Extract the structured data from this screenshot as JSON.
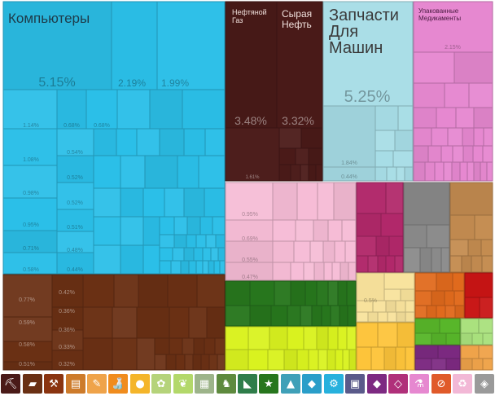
{
  "chart_data": {
    "type": "treemap",
    "leaves": [
      {
        "group": "machines",
        "label": "Компьютеры",
        "value": 5.15,
        "share": "5.15%",
        "title_size": "xl"
      },
      {
        "group": "machines",
        "label": "",
        "value": 2.19,
        "share": "2.19%"
      },
      {
        "group": "machines",
        "label": "",
        "value": 1.99,
        "share": "1.99%"
      },
      {
        "group": "machines",
        "label": "",
        "value": 1.14,
        "share": "1.14%"
      },
      {
        "group": "machines",
        "label": "",
        "value": 0.68,
        "share": "0.68%"
      },
      {
        "group": "machines",
        "label": "",
        "value": 0.68,
        "share": "0.68%"
      },
      {
        "group": "machines",
        "label": "",
        "value": 1.08,
        "share": "1.08%"
      },
      {
        "group": "machines",
        "label": "",
        "value": 0.54,
        "share": "0.54%"
      },
      {
        "group": "machines",
        "label": "",
        "value": 0.98,
        "share": "0.98%"
      },
      {
        "group": "machines",
        "label": "",
        "value": 0.52,
        "share": "0.52%"
      },
      {
        "group": "machines",
        "label": "",
        "value": 0.95,
        "share": "0.95%"
      },
      {
        "group": "machines",
        "label": "",
        "value": 0.52,
        "share": "0.52%"
      },
      {
        "group": "machines",
        "label": "",
        "value": 0.71,
        "share": "0.71%"
      },
      {
        "group": "machines",
        "label": "",
        "value": 0.51,
        "share": "0.51%"
      },
      {
        "group": "machines",
        "label": "",
        "value": 0.58,
        "share": "0.58%"
      },
      {
        "group": "machines",
        "label": "",
        "value": 0.48,
        "share": "0.48%"
      },
      {
        "group": "machines",
        "label": "",
        "value": 0.44,
        "share": "0.44%"
      },
      {
        "group": "minerals",
        "label": "Нефтяной Газ",
        "value": 3.48,
        "share": "3.48%",
        "title_size": "s"
      },
      {
        "group": "minerals",
        "label": "Сырая Нефть",
        "value": 3.32,
        "share": "3.32%",
        "title_size": "m"
      },
      {
        "group": "minerals",
        "label": "",
        "value": 1.61,
        "share": "1.61%"
      },
      {
        "group": "transport",
        "label": "Запчасти Для Машин",
        "value": 5.25,
        "share": "5.25%",
        "title_size": "l"
      },
      {
        "group": "transport",
        "label": "",
        "value": 1.84,
        "share": "1.84%"
      },
      {
        "group": "transport",
        "label": "",
        "value": 0.44,
        "share": "0.44%"
      },
      {
        "group": "chemicals",
        "label": "Упакованные Медикаменты",
        "value": 2.15,
        "share": "2.15%",
        "title_size": "xs"
      },
      {
        "group": "plastics",
        "label": "",
        "value": 0.95,
        "share": "0.95%"
      },
      {
        "group": "plastics",
        "label": "",
        "value": 0.69,
        "share": "0.69%"
      },
      {
        "group": "plastics",
        "label": "",
        "value": 0.55,
        "share": "0.55%"
      },
      {
        "group": "plastics",
        "label": "",
        "value": 0.47,
        "share": "0.47%"
      },
      {
        "group": "metals",
        "label": "",
        "value": 0.77,
        "share": "0.77%"
      },
      {
        "group": "metals",
        "label": "",
        "value": 0.42,
        "share": "0.42%"
      },
      {
        "group": "metals",
        "label": "",
        "value": 0.59,
        "share": "0.59%"
      },
      {
        "group": "metals",
        "label": "",
        "value": 0.36,
        "share": "0.36%"
      },
      {
        "group": "metals",
        "label": "",
        "value": 0.36,
        "share": "0.36%"
      },
      {
        "group": "metals",
        "label": "",
        "value": 0.58,
        "share": "0.58%"
      },
      {
        "group": "metals",
        "label": "",
        "value": 0.33,
        "share": "0.33%"
      },
      {
        "group": "metals",
        "label": "",
        "value": 0.51,
        "share": "0.51%"
      },
      {
        "group": "metals",
        "label": "",
        "value": 0.32,
        "share": "0.32%"
      },
      {
        "group": "foodstuffs",
        "label": "",
        "value": 0.5,
        "share": "0.5%"
      }
    ]
  },
  "groups": {
    "machines": "#2bbfe8",
    "minerals": "#4a1a18",
    "transport": "#a7dde6",
    "chemicals": "#e688d0",
    "plastics": "#f6bcd6",
    "textiles": "#b1286a",
    "stone": "#8a8a8a",
    "wood": "#c48c50",
    "metals": "#6a3014",
    "vegetable": "#27761d",
    "misc": "#d9f21f",
    "foodstuffs": "#f8e29c",
    "instruments": "#fdc43a",
    "animal": "#e06a1d",
    "weapons": "#c81414",
    "green": "#58b62a",
    "lightgreen": "#a8e07c",
    "purple": "#7d2a82",
    "paper": "#efa34a",
    "lightgray": "#d8d8d8"
  },
  "legend": [
    {
      "icon": "pickaxe-icon",
      "glyph": "⛏",
      "color": "#4a1a18"
    },
    {
      "icon": "metal-bars-icon",
      "glyph": "▰",
      "color": "#6a3014"
    },
    {
      "icon": "anvil-icon",
      "glyph": "⚒",
      "color": "#8a3410"
    },
    {
      "icon": "paper-roll-icon",
      "glyph": "▤",
      "color": "#cd7b2b"
    },
    {
      "icon": "scroll-icon",
      "glyph": "✎",
      "color": "#efa34a"
    },
    {
      "icon": "bottle-icon",
      "glyph": "🍶",
      "color": "#f08c1e"
    },
    {
      "icon": "fruit-icon",
      "glyph": "●",
      "color": "#f4b52a"
    },
    {
      "icon": "sheaf-icon",
      "glyph": "✿",
      "color": "#b5d37a"
    },
    {
      "icon": "leaf-icon",
      "glyph": "❦",
      "color": "#b3d86a"
    },
    {
      "icon": "stone-block-icon",
      "glyph": "▦",
      "color": "#9db48a"
    },
    {
      "icon": "horse-icon",
      "glyph": "♞",
      "color": "#5e8a3e"
    },
    {
      "icon": "shoe-icon",
      "glyph": "◣",
      "color": "#2f7d4a"
    },
    {
      "icon": "star-icon",
      "glyph": "★",
      "color": "#27761d"
    },
    {
      "icon": "shirt-icon",
      "glyph": "▲",
      "color": "#3fa0b8"
    },
    {
      "icon": "car-icon",
      "glyph": "◆",
      "color": "#2a9ec9"
    },
    {
      "icon": "cogs-icon",
      "glyph": "⚙",
      "color": "#27b1dd"
    },
    {
      "icon": "plug-icon",
      "glyph": "▣",
      "color": "#5a5a8a"
    },
    {
      "icon": "diamond-icon",
      "glyph": "◆",
      "color": "#7d2a82"
    },
    {
      "icon": "gem-icon",
      "glyph": "◇",
      "color": "#b0307a"
    },
    {
      "icon": "flask-icon",
      "glyph": "⚗",
      "color": "#e688d0"
    },
    {
      "icon": "no-symbol-icon",
      "glyph": "⊘",
      "color": "#e05a2a"
    },
    {
      "icon": "recycle-icon",
      "glyph": "♻",
      "color": "#f2b8d6"
    },
    {
      "icon": "cube-icon",
      "glyph": "◈",
      "color": "#9a9a9a"
    }
  ]
}
